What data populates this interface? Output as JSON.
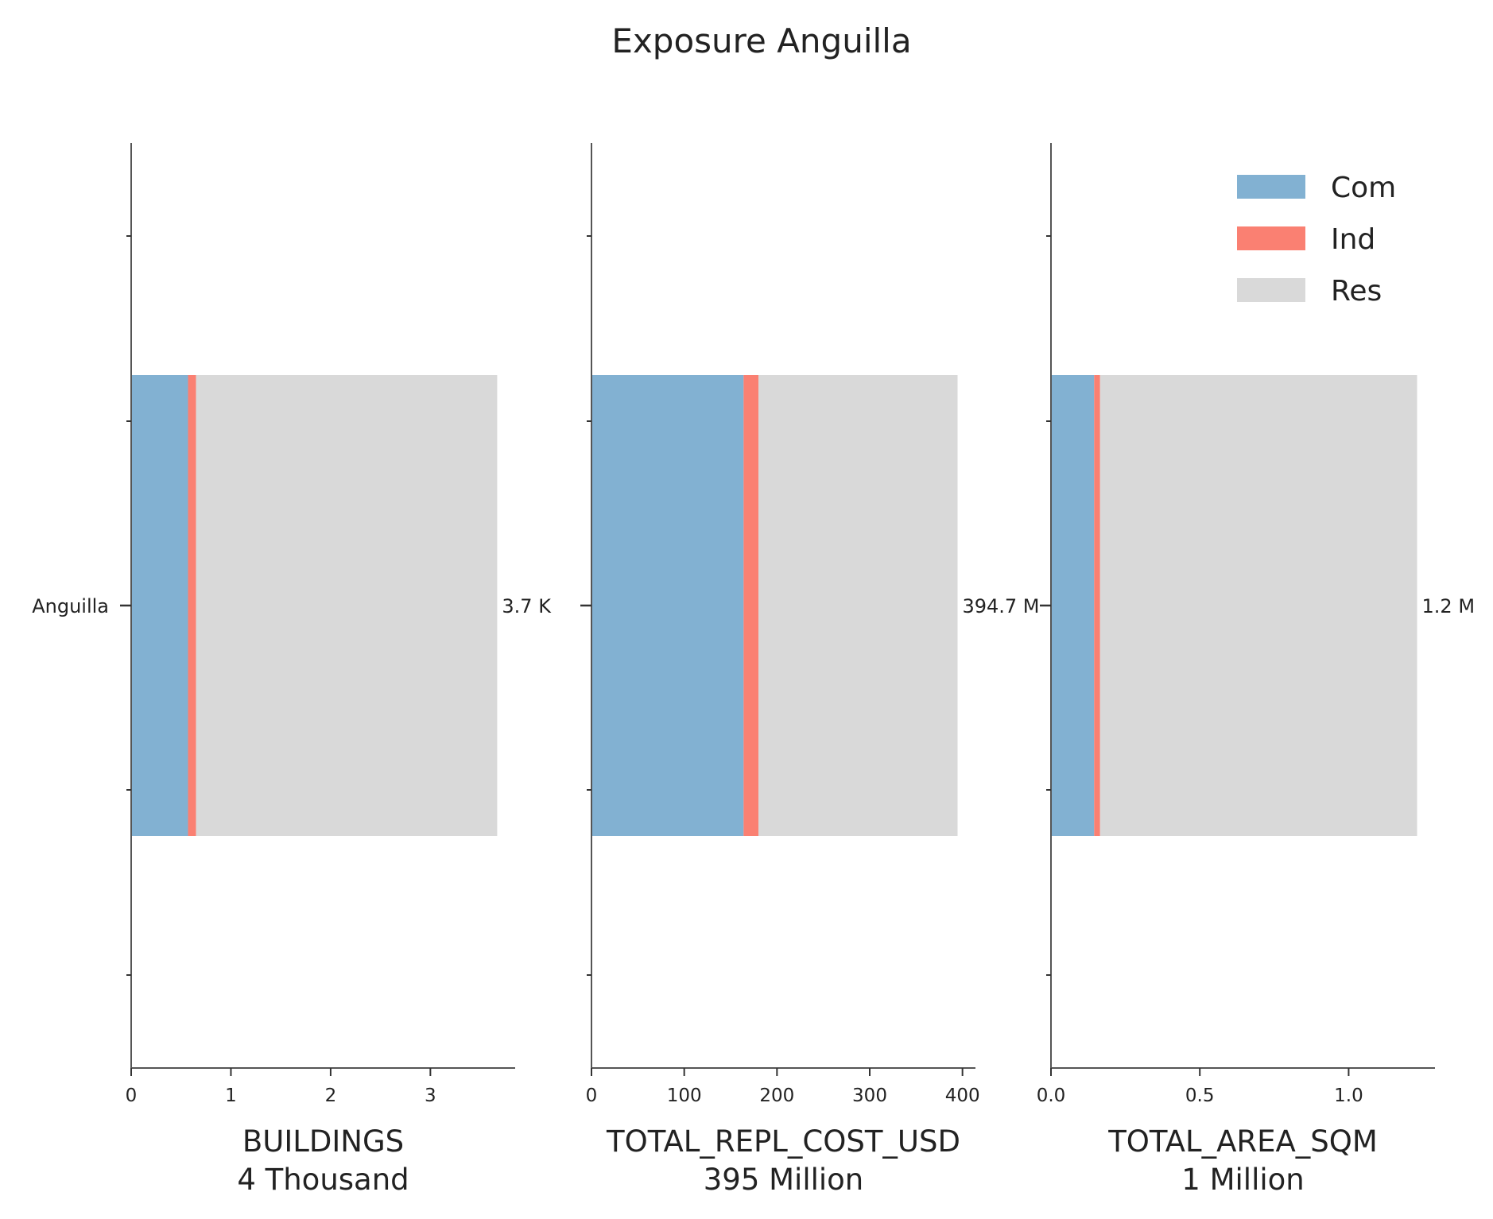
{
  "title": "Exposure Anguilla",
  "colors": {
    "Com": "#82b1d2",
    "Ind": "#fa8072",
    "Res": "#d9d9d9",
    "axis": "#555555"
  },
  "legend": {
    "placement": "top-right",
    "entries": [
      "Com",
      "Ind",
      "Res"
    ]
  },
  "chart_data": [
    {
      "type": "bar",
      "orientation": "horizontal",
      "stacked": true,
      "category_label": "Anguilla",
      "xlabel": "BUILDINGS",
      "xlabel2": "4 Thousand",
      "xlim": [
        0,
        3.85
      ],
      "xticks": [
        0,
        1,
        2,
        3
      ],
      "xtick_labels": [
        "0",
        "1",
        "2",
        "3"
      ],
      "series": [
        {
          "name": "Com",
          "value": 0.57
        },
        {
          "name": "Ind",
          "value": 0.08
        },
        {
          "name": "Res",
          "value": 3.02
        }
      ],
      "total_label": "3.7 K"
    },
    {
      "type": "bar",
      "orientation": "horizontal",
      "stacked": true,
      "category_label": "",
      "xlabel": "TOTAL_REPL_COST_USD",
      "xlabel2": "395 Million",
      "xlim": [
        0,
        414
      ],
      "xticks": [
        0,
        100,
        200,
        300,
        400
      ],
      "xtick_labels": [
        "0",
        "100",
        "200",
        "300",
        "400"
      ],
      "series": [
        {
          "name": "Com",
          "value": 164
        },
        {
          "name": "Ind",
          "value": 16
        },
        {
          "name": "Res",
          "value": 214.7
        }
      ],
      "total_label": "394.7 M"
    },
    {
      "type": "bar",
      "orientation": "horizontal",
      "stacked": true,
      "category_label": "",
      "xlabel": "TOTAL_AREA_SQM",
      "xlabel2": "1 Million",
      "xlim": [
        0,
        1.29
      ],
      "xticks": [
        0,
        0.5,
        1.0
      ],
      "xtick_labels": [
        "0.0",
        "0.5",
        "1.0"
      ],
      "series": [
        {
          "name": "Com",
          "value": 0.145
        },
        {
          "name": "Ind",
          "value": 0.02
        },
        {
          "name": "Res",
          "value": 1.065
        }
      ],
      "total_label": "1.2 M"
    }
  ]
}
